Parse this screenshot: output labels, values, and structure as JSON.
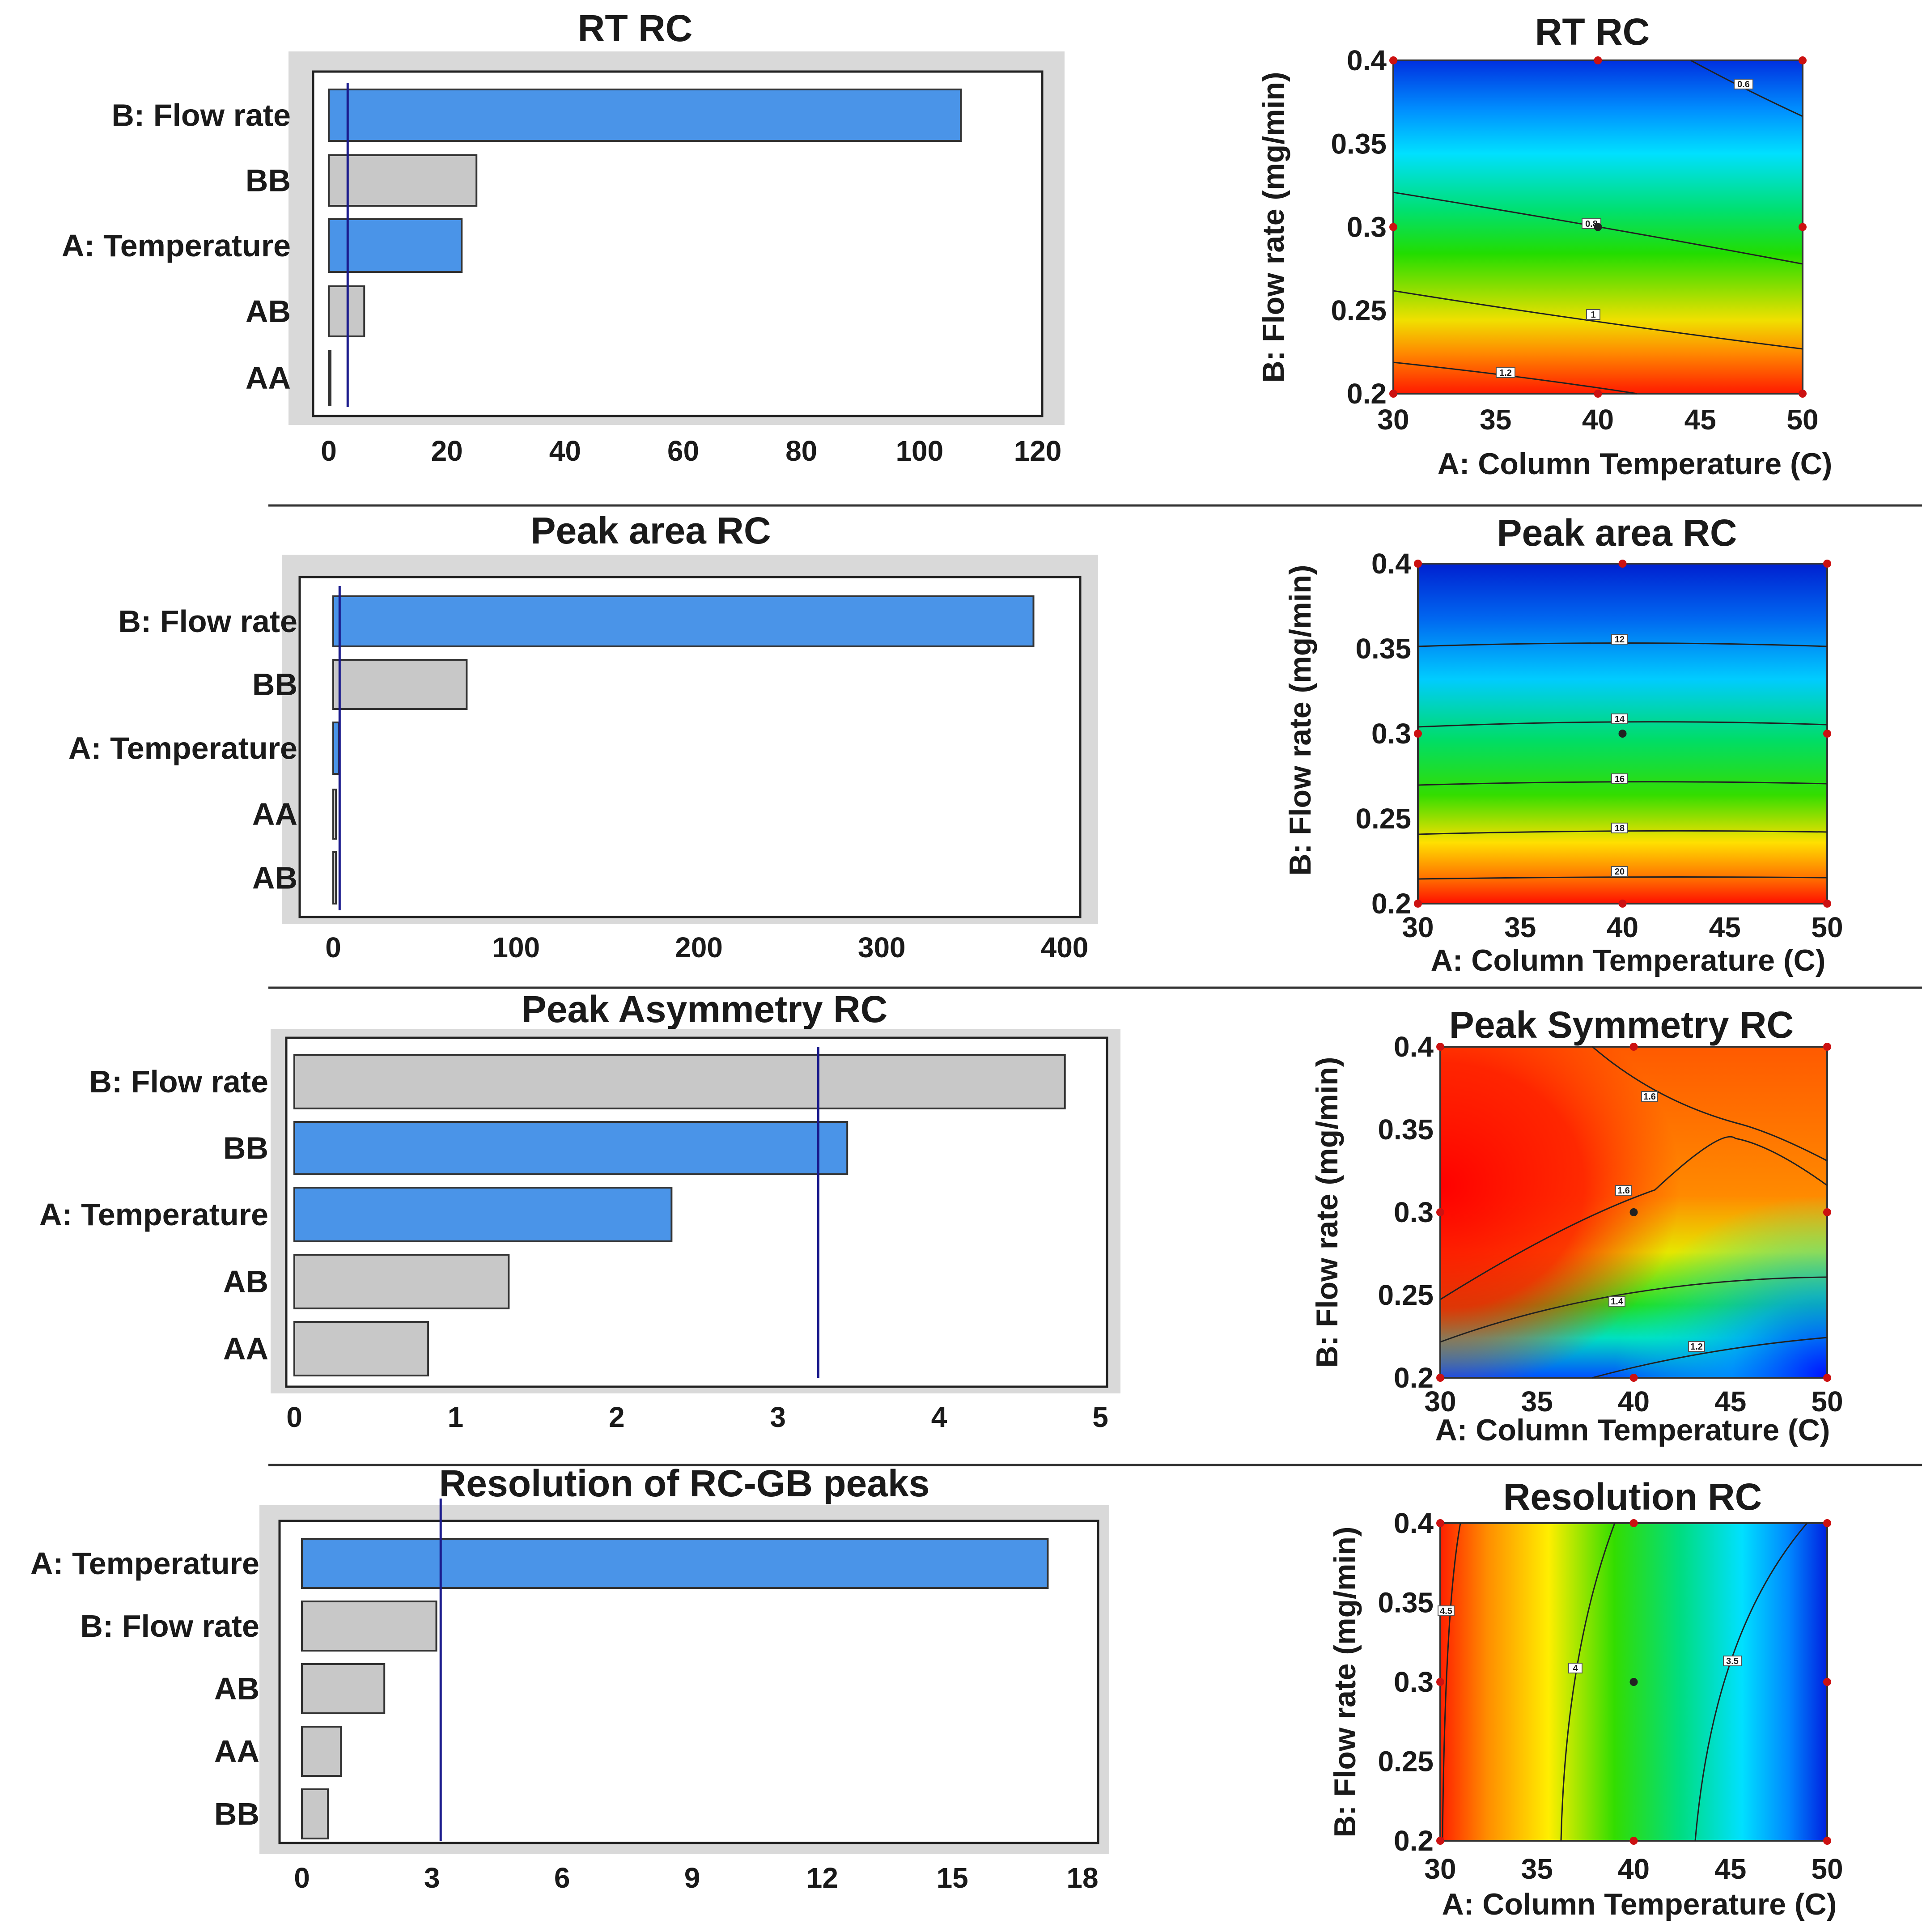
{
  "pareto_charts": [
    {
      "title": "RT RC",
      "type": "bar",
      "orientation": "horizontal",
      "categories": [
        "B: Flow rate",
        "BB",
        "A: Temperature",
        "AB",
        "AA"
      ],
      "values": [
        107,
        25,
        22.5,
        6,
        0.3
      ],
      "highlighted": [
        true,
        false,
        true,
        false,
        false
      ],
      "xlim": [
        0,
        120
      ],
      "xticks": [
        0,
        20,
        40,
        60,
        80,
        100,
        120
      ],
      "reference_line": 3.2
    },
    {
      "title": "Peak area RC",
      "type": "bar",
      "orientation": "horizontal",
      "categories": [
        "B: Flow rate",
        "BB",
        "A: Temperature",
        "AA",
        "AB"
      ],
      "values": [
        383,
        73,
        3,
        1.5,
        1.5
      ],
      "highlighted": [
        true,
        false,
        true,
        false,
        false
      ],
      "xlim": [
        0,
        400
      ],
      "xticks": [
        0,
        100,
        200,
        300,
        400
      ],
      "reference_line": 3.5
    },
    {
      "title": "Peak Asymmetry RC",
      "type": "bar",
      "orientation": "horizontal",
      "categories": [
        "B: Flow rate",
        "BB",
        "A: Temperature",
        "AB",
        "AA"
      ],
      "values": [
        4.78,
        3.43,
        2.34,
        1.33,
        0.83
      ],
      "highlighted": [
        false,
        true,
        true,
        false,
        false
      ],
      "xlim": [
        0,
        5
      ],
      "xticks": [
        0,
        1,
        2,
        3,
        4,
        5
      ],
      "reference_line": 3.25
    },
    {
      "title": "Resolution of RC-GB peaks",
      "type": "bar",
      "orientation": "horizontal",
      "categories": [
        "A: Temperature",
        "B: Flow rate",
        "AB",
        "AA",
        "BB"
      ],
      "values": [
        17.2,
        3.1,
        1.9,
        0.9,
        0.6
      ],
      "highlighted": [
        true,
        false,
        false,
        false,
        false
      ],
      "xlim": [
        0,
        18
      ],
      "xticks": [
        0,
        3,
        6,
        9,
        12,
        15,
        18
      ],
      "reference_line": 3.2
    }
  ],
  "contour_charts": [
    {
      "title": "RT RC",
      "type": "heatmap",
      "xlabel": "A: Column Temperature (C)",
      "ylabel": "B: Flow rate (mg/min)",
      "xlim": [
        30,
        50
      ],
      "ylim": [
        0.2,
        0.4
      ],
      "xticks": [
        30,
        35,
        40,
        45,
        50
      ],
      "yticks": [
        0.2,
        0.25,
        0.3,
        0.35,
        0.4
      ],
      "contour_labels": [
        "0.6",
        "0.8",
        "1",
        "1.2"
      ]
    },
    {
      "title": "Peak area RC",
      "type": "heatmap",
      "xlabel": "A: Column Temperature (C)",
      "ylabel": "B: Flow rate (mg/min)",
      "xlim": [
        30,
        50
      ],
      "ylim": [
        0.2,
        0.4
      ],
      "xticks": [
        30,
        35,
        40,
        45,
        50
      ],
      "yticks": [
        0.2,
        0.25,
        0.3,
        0.35,
        0.4
      ],
      "contour_labels": [
        "12",
        "14",
        "16",
        "18",
        "20"
      ]
    },
    {
      "title": "Peak Symmetry RC",
      "type": "heatmap",
      "xlabel": "A: Column Temperature (C)",
      "ylabel": "B: Flow rate (mg/min)",
      "xlim": [
        30,
        50
      ],
      "ylim": [
        0.2,
        0.4
      ],
      "xticks": [
        30,
        35,
        40,
        45,
        50
      ],
      "yticks": [
        0.2,
        0.25,
        0.3,
        0.35,
        0.4
      ],
      "contour_labels": [
        "1.6",
        "1.6",
        "1.4",
        "1.2"
      ]
    },
    {
      "title": "Resolution RC",
      "type": "heatmap",
      "xlabel": "A: Column Temperature (C)",
      "ylabel": "B: Flow rate (mg/min)",
      "xlim": [
        30,
        50
      ],
      "ylim": [
        0.2,
        0.4
      ],
      "xticks": [
        30,
        35,
        40,
        45,
        50
      ],
      "yticks": [
        0.2,
        0.25,
        0.3,
        0.35,
        0.4
      ],
      "contour_labels": [
        "4.5",
        "4",
        "3.5"
      ]
    }
  ],
  "colors": {
    "highlight_bar": "#4a94e8",
    "plain_bar": "#c8c8c8",
    "bar_edge": "#333333",
    "reference_line": "#1a1a8c",
    "frame_gray": "#d9d9d9",
    "design_point": "#cc1111"
  }
}
